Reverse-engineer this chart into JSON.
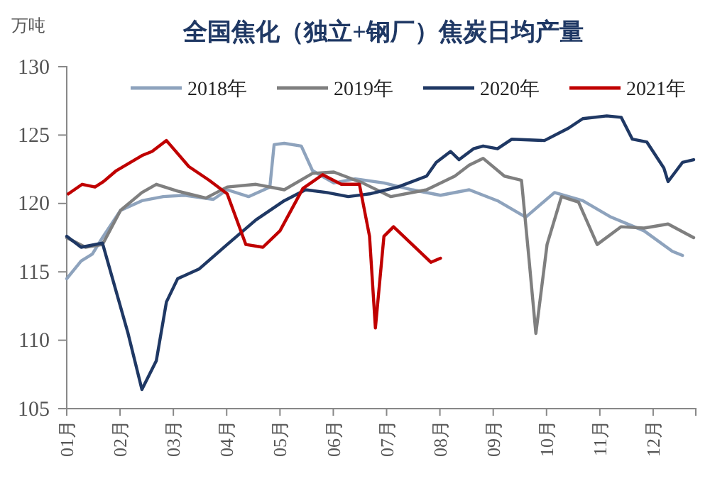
{
  "chart_data": {
    "type": "line",
    "title": "全国焦化（独立+钢厂）焦炭日均产量",
    "ylabel": "万吨",
    "legend": "top",
    "grid": false,
    "marker": "none",
    "line_style": "solid",
    "xlim": [
      1,
      12.8
    ],
    "xticks": [
      {
        "value": 1,
        "label": "01月"
      },
      {
        "value": 2,
        "label": "02月"
      },
      {
        "value": 3,
        "label": "03月"
      },
      {
        "value": 4,
        "label": "04月"
      },
      {
        "value": 5,
        "label": "05月"
      },
      {
        "value": 6,
        "label": "06月"
      },
      {
        "value": 7,
        "label": "07月"
      },
      {
        "value": 8,
        "label": "08月"
      },
      {
        "value": 9,
        "label": "09月"
      },
      {
        "value": 10,
        "label": "10月"
      },
      {
        "value": 11,
        "label": "11月"
      },
      {
        "value": 12,
        "label": "12月"
      }
    ],
    "ylim": [
      105,
      130
    ],
    "yticks": [
      105,
      110,
      115,
      120,
      125,
      130
    ],
    "series": [
      {
        "name": "2018年",
        "color": "#8ea3bd",
        "x": [
          1,
          1.27,
          1.48,
          1.67,
          2.01,
          2.41,
          2.81,
          3.21,
          3.75,
          4.01,
          4.41,
          4.81,
          4.89,
          5.08,
          5.4,
          5.61,
          6.01,
          6.41,
          6.95,
          7.48,
          8.01,
          8.55,
          9.08,
          9.61,
          10.15,
          10.68,
          11.21,
          11.83,
          12.36,
          12.55
        ],
        "values": [
          114.5,
          115.8,
          116.3,
          117.5,
          119.5,
          120.2,
          120.5,
          120.6,
          120.3,
          121.0,
          120.5,
          121.2,
          124.3,
          124.4,
          124.2,
          122.4,
          121.5,
          121.8,
          121.5,
          121.0,
          120.6,
          121.0,
          120.2,
          119.0,
          120.8,
          120.2,
          119.0,
          118.0,
          116.5,
          116.2
        ]
      },
      {
        "name": "2019年",
        "color": "#7f7f7f",
        "x": [
          1,
          1.35,
          1.67,
          2.01,
          2.41,
          2.68,
          3.08,
          3.61,
          4.01,
          4.55,
          5.08,
          5.61,
          6.01,
          6.55,
          7.08,
          7.75,
          8.28,
          8.55,
          8.81,
          9.21,
          9.53,
          9.67,
          9.8,
          10.01,
          10.28,
          10.6,
          10.95,
          11.4,
          11.83,
          12.28,
          12.76
        ],
        "values": [
          117.5,
          116.8,
          117.0,
          119.5,
          120.8,
          121.4,
          120.9,
          120.4,
          121.2,
          121.4,
          121.0,
          122.2,
          122.3,
          121.5,
          120.5,
          121.0,
          122.0,
          122.8,
          123.3,
          122.0,
          121.7,
          116.0,
          110.5,
          117.0,
          120.5,
          120.1,
          117.0,
          118.3,
          118.2,
          118.5,
          117.5
        ]
      },
      {
        "name": "2020年",
        "color": "#1f3864",
        "x": [
          1,
          1.27,
          1.67,
          2.15,
          2.41,
          2.68,
          2.87,
          3.08,
          3.48,
          4.01,
          4.55,
          5.08,
          5.48,
          5.88,
          6.28,
          6.68,
          7.21,
          7.75,
          7.93,
          8.2,
          8.36,
          8.63,
          8.81,
          9.08,
          9.35,
          9.96,
          10.41,
          10.68,
          11.13,
          11.4,
          11.61,
          11.88,
          12.2,
          12.28,
          12.55,
          12.76
        ],
        "values": [
          117.6,
          116.8,
          117.1,
          110.5,
          106.4,
          108.5,
          112.8,
          114.5,
          115.2,
          117.0,
          118.8,
          120.2,
          121.0,
          120.8,
          120.5,
          120.7,
          121.2,
          122.0,
          123.0,
          123.8,
          123.2,
          124.0,
          124.2,
          124.0,
          124.7,
          124.6,
          125.5,
          126.2,
          126.4,
          126.3,
          124.7,
          124.5,
          122.6,
          121.6,
          123.0,
          123.2
        ]
      },
      {
        "name": "2021年",
        "color": "#c00000",
        "x": [
          1.03,
          1.29,
          1.53,
          1.69,
          1.93,
          2.41,
          2.6,
          2.87,
          3.29,
          3.67,
          4.01,
          4.36,
          4.68,
          5.0,
          5.43,
          5.8,
          6.15,
          6.49,
          6.68,
          6.79,
          6.95,
          7.13,
          7.48,
          7.83,
          8.01
        ],
        "values": [
          120.7,
          121.4,
          121.2,
          121.6,
          122.4,
          123.5,
          123.8,
          124.6,
          122.7,
          121.7,
          120.7,
          117.0,
          116.8,
          118.0,
          121.1,
          122.1,
          121.4,
          121.4,
          117.6,
          110.9,
          117.6,
          118.3,
          117.0,
          115.7,
          116.0
        ]
      }
    ]
  }
}
